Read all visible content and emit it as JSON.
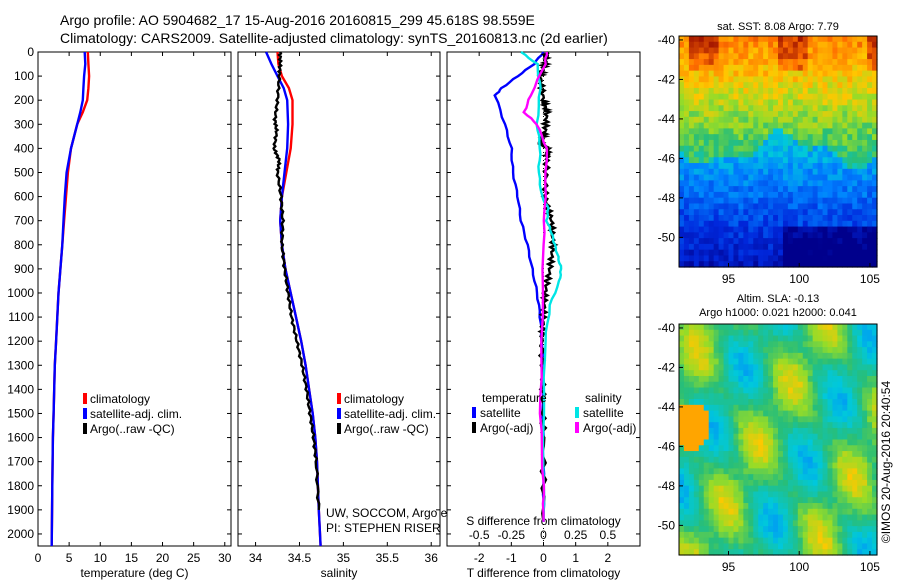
{
  "header": {
    "title_line1": "Argo profile: AO 5904682_17 15-Aug-2016 20160815_299 45.618S 98.559E",
    "title_line2": "Climatology: CARS2009. Satellite-adjusted climatology: synTS_20160813.nc (2d earlier)"
  },
  "colors": {
    "climatology": "#ff0000",
    "satellite": "#0000ff",
    "argo": "#000000",
    "sat_salinity": "#00e5e5",
    "argo_salinity": "#ff00ff"
  },
  "chart_data": [
    {
      "type": "line",
      "panel": "temperature",
      "xlabel": "temperature (deg C)",
      "ylabel": "",
      "xlim": [
        0,
        31
      ],
      "ylim": [
        2050,
        0
      ],
      "x_ticks": [
        "0",
        "5",
        "10",
        "15",
        "20",
        "25",
        "30"
      ],
      "y_ticks": [
        "0",
        "100",
        "200",
        "300",
        "400",
        "500",
        "600",
        "700",
        "800",
        "900",
        "1000",
        "1100",
        "1200",
        "1300",
        "1400",
        "1500",
        "1600",
        "1700",
        "1800",
        "1900",
        "2000"
      ],
      "legend": [
        "climatology",
        "satellite-adj. clim.",
        "Argo(..raw -QC)"
      ],
      "series": [
        {
          "name": "climatology",
          "color": "#ff0000",
          "x": [
            8.0,
            8.1,
            8.2,
            8.1,
            7.9,
            7.2,
            6.3,
            5.3,
            4.8,
            4.5,
            4.2,
            3.9,
            3.6,
            3.3,
            3.1,
            2.9,
            2.7,
            2.6,
            2.5,
            2.4,
            2.3,
            2.2
          ],
          "y": [
            0,
            50,
            100,
            150,
            200,
            250,
            300,
            400,
            500,
            600,
            700,
            800,
            900,
            1000,
            1100,
            1200,
            1300,
            1400,
            1500,
            1600,
            1800,
            2050
          ]
        },
        {
          "name": "satellite-adj. clim.",
          "color": "#0000ff",
          "x": [
            7.5,
            7.6,
            7.4,
            7.3,
            7.2,
            6.8,
            6.3,
            5.3,
            4.6,
            4.3,
            4.1,
            3.9,
            3.6,
            3.3,
            3.1,
            2.9,
            2.7,
            2.6,
            2.5,
            2.4,
            2.3,
            2.2
          ],
          "y": [
            0,
            50,
            100,
            150,
            200,
            250,
            300,
            400,
            500,
            600,
            700,
            800,
            900,
            1000,
            1100,
            1200,
            1300,
            1400,
            1500,
            1600,
            1800,
            2050
          ]
        }
      ]
    },
    {
      "type": "line",
      "panel": "salinity",
      "xlabel": "salinity",
      "xlim": [
        33.8,
        36.1
      ],
      "ylim": [
        2050,
        0
      ],
      "x_ticks": [
        "34",
        "34.5",
        "35",
        "35.5",
        "36"
      ],
      "legend": [
        "climatology",
        "satellite-adj. clim.",
        "Argo(..raw -QC)"
      ],
      "series": [
        {
          "name": "climatology",
          "color": "#ff0000",
          "x": [
            34.25,
            34.26,
            34.3,
            34.38,
            34.42,
            34.42,
            34.4,
            34.35,
            34.3,
            34.28,
            34.3,
            34.34,
            34.4,
            34.46,
            34.52,
            34.57,
            34.61,
            34.65,
            34.68,
            34.7,
            34.72,
            34.74
          ],
          "y": [
            0,
            50,
            100,
            150,
            200,
            300,
            400,
            500,
            600,
            700,
            800,
            900,
            1000,
            1100,
            1200,
            1300,
            1400,
            1500,
            1600,
            1700,
            1900,
            2050
          ]
        },
        {
          "name": "satellite-adj. clim.",
          "color": "#0000ff",
          "x": [
            34.12,
            34.18,
            34.25,
            34.32,
            34.36,
            34.37,
            34.36,
            34.33,
            34.3,
            34.28,
            34.3,
            34.34,
            34.4,
            34.46,
            34.52,
            34.57,
            34.61,
            34.65,
            34.68,
            34.7,
            34.72,
            34.74
          ],
          "y": [
            0,
            50,
            100,
            150,
            200,
            300,
            400,
            500,
            600,
            700,
            800,
            900,
            1000,
            1100,
            1200,
            1300,
            1400,
            1500,
            1600,
            1700,
            1900,
            2050
          ]
        },
        {
          "name": "Argo(..raw -QC)",
          "color": "#000000",
          "x": [
            34.28,
            34.28,
            34.27,
            34.25,
            34.22,
            34.24,
            34.21,
            34.27,
            34.25,
            34.29,
            34.31,
            34.3,
            34.33,
            34.37,
            34.41,
            34.47,
            34.53,
            34.58,
            34.62,
            34.66,
            34.69,
            34.72
          ],
          "y": [
            0,
            50,
            100,
            200,
            280,
            330,
            400,
            450,
            500,
            600,
            700,
            800,
            900,
            1000,
            1100,
            1200,
            1300,
            1400,
            1500,
            1600,
            1700,
            1900
          ]
        }
      ]
    },
    {
      "type": "line",
      "panel": "difference",
      "xlabel": "T difference from climatology",
      "x2label": "S difference from climatology",
      "xlim": [
        -3,
        3
      ],
      "ylim": [
        2050,
        0
      ],
      "x_ticks": [
        "-2",
        "-1",
        "0",
        "1",
        "2"
      ],
      "x2_ticks": [
        "-0.5",
        "-0.25",
        "0",
        "0.25",
        "0.5"
      ],
      "legend_headers": [
        "temperature",
        "salinity"
      ],
      "legend": [
        "satellite",
        "Argo(-adj)",
        "satellite",
        "Argo(-adj)"
      ],
      "series": [
        {
          "name": "satellite",
          "color": "#0000ff",
          "x": [
            0,
            -0.3,
            -0.8,
            -1.3,
            -1.5,
            -1.2,
            -1.0,
            -0.95,
            -0.8,
            -0.7,
            -0.5,
            -0.35,
            -0.2,
            -0.1,
            -0.05,
            -0.02,
            -0.01,
            0,
            0
          ],
          "y": [
            0,
            50,
            100,
            150,
            180,
            300,
            400,
            500,
            600,
            700,
            800,
            900,
            1000,
            1100,
            1200,
            1400,
            1600,
            1800,
            1950
          ]
        },
        {
          "name": "Argo(-adj)",
          "color": "#000000",
          "x": [
            0.1,
            0.05,
            -0.1,
            0,
            0.1,
            0.05,
            -0.1,
            0.15,
            0.1,
            0.05,
            0.25,
            0.3,
            0.2,
            0.05,
            0,
            -0.05,
            -0.02,
            0,
            0
          ],
          "y": [
            0,
            50,
            100,
            200,
            250,
            330,
            380,
            400,
            450,
            600,
            700,
            800,
            900,
            1000,
            1100,
            1200,
            1400,
            1600,
            1950
          ]
        },
        {
          "name": "satellite",
          "color": "#00e5e5",
          "x": [
            -0.7,
            -0.2,
            -0.1,
            -0.2,
            -0.1,
            -0.15,
            -0.05,
            0.15,
            0.1,
            0.25,
            0.35,
            0.45,
            0.55,
            0.5,
            0.2,
            0.05,
            0,
            0
          ],
          "y": [
            0,
            50,
            150,
            300,
            400,
            500,
            600,
            650,
            700,
            750,
            800,
            850,
            900,
            950,
            1050,
            1200,
            1500,
            1950
          ]
        },
        {
          "name": "Argo(-adj)",
          "color": "#ff00ff",
          "x": [
            0.1,
            0.05,
            -0.4,
            -0.6,
            -0.2,
            0.1,
            0.05,
            0,
            -0.05,
            -0.1,
            0,
            0
          ],
          "y": [
            0,
            50,
            180,
            250,
            300,
            400,
            600,
            800,
            1200,
            1500,
            1800,
            1950
          ]
        }
      ]
    },
    {
      "type": "heatmap",
      "panel": "sst_map",
      "title": "sat. SST: 8.08 Argo: 7.79",
      "xlim": [
        91.5,
        105.5
      ],
      "ylim": [
        -51.5,
        -39.8
      ],
      "x_ticks": [
        "95",
        "100",
        "105"
      ],
      "y_ticks": [
        "-40",
        "-42",
        "-44",
        "-46",
        "-48",
        "-50"
      ]
    },
    {
      "type": "heatmap",
      "panel": "sla_map",
      "title_line1": "Altim. SLA: -0.13",
      "title_line2": "Argo h1000: 0.021 h2000: 0.041",
      "xlim": [
        91.5,
        105.5
      ],
      "ylim": [
        -51.5,
        -39.8
      ],
      "x_ticks": [
        "95",
        "100",
        "105"
      ],
      "y_ticks": [
        "-40",
        "-42",
        "-44",
        "-46",
        "-48",
        "-50"
      ]
    }
  ],
  "notes": {
    "credit1": "UW, SOCCOM, Argo equivalent",
    "credit2": "PI: STEPHEN RISER",
    "stamp": "©IMOS 20-Aug-2016 20:40:54"
  }
}
